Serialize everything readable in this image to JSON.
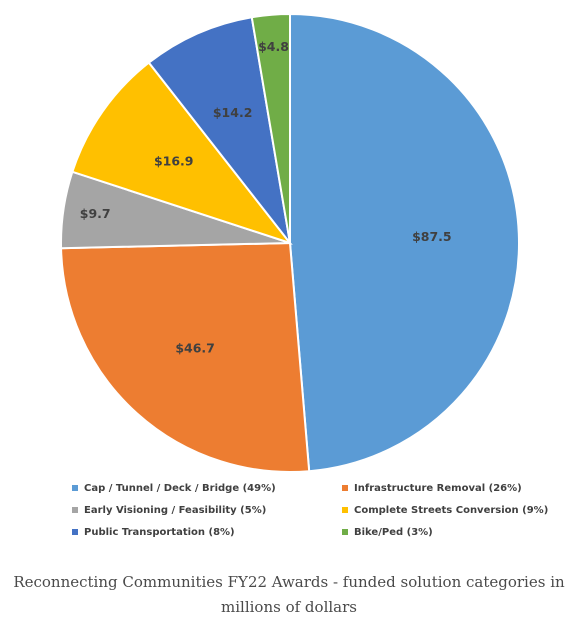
{
  "chart_data": {
    "type": "pie",
    "unit_prefix": "$",
    "slices": [
      {
        "label": "$87.5",
        "value": 87.5,
        "legend": "Cap / Tunnel / Deck / Bridge (49%)",
        "color": "#5B9BD5"
      },
      {
        "label": "$46.7",
        "value": 46.7,
        "legend": "Infrastructure Removal (26%)",
        "color": "#ED7D31"
      },
      {
        "label": "$9.7",
        "value": 9.7,
        "legend": "Early Visioning / Feasibility (5%)",
        "color": "#A5A5A5"
      },
      {
        "label": "$16.9",
        "value": 16.9,
        "legend": "Complete Streets Conversion (9%)",
        "color": "#FFC000"
      },
      {
        "label": "$14.2",
        "value": 14.2,
        "legend": "Public Transportation (8%)",
        "color": "#4472C4"
      },
      {
        "label": "$4.8",
        "value": 4.8,
        "legend": "Bike/Ped (3%)",
        "color": "#70AD47"
      }
    ],
    "legend_placement": "bottom"
  },
  "caption": {
    "line1": "Reconnecting Communities FY22 Awards - funded solution categories in",
    "line2": "millions of dollars"
  }
}
